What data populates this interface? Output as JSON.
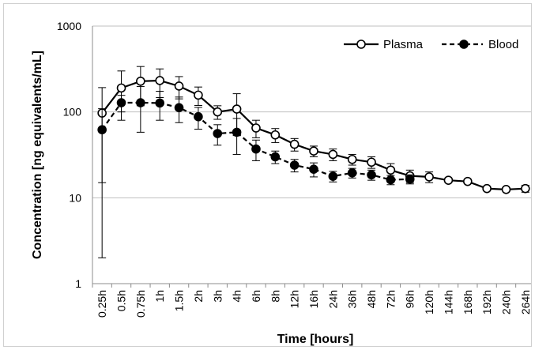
{
  "chart_data": {
    "type": "line",
    "title": "",
    "xlabel": "Time [hours]",
    "ylabel": "Concentration [ng equivalents/mL]",
    "yscale": "log",
    "ylim": [
      1,
      1000
    ],
    "yticks": [
      1,
      10,
      100,
      1000
    ],
    "ytick_labels": [
      "1",
      "10",
      "100",
      "1000"
    ],
    "grid": "horizontal",
    "legend_position": "top-right",
    "categories": [
      "0.25h",
      "0.5h",
      "0.75h",
      "1h",
      "1.5h",
      "2h",
      "3h",
      "4h",
      "6h",
      "8h",
      "12h",
      "16h",
      "24h",
      "36h",
      "48h",
      "72h",
      "96h",
      "120h",
      "144h",
      "168h",
      "192h",
      "240h",
      "264h"
    ],
    "series": [
      {
        "name": "Plasma",
        "marker": "open-circle",
        "line_style": "solid",
        "color": "#000000",
        "values": [
          97,
          190,
          228,
          232,
          200,
          157,
          100,
          108,
          65,
          54,
          42,
          35,
          32,
          28,
          26,
          21,
          18,
          17.5,
          16,
          15.5,
          12.8,
          12.5,
          12.8
        ],
        "error": [
          95,
          110,
          110,
          85,
          58,
          38,
          18,
          55,
          15,
          10,
          7,
          5,
          5,
          4,
          4,
          4,
          3,
          2.5,
          0,
          0,
          0,
          0,
          1.2
        ]
      },
      {
        "name": "Blood",
        "marker": "filled-circle",
        "line_style": "dashed",
        "color": "#000000",
        "values": [
          62,
          128,
          128,
          127,
          112,
          88,
          56,
          58,
          37,
          30,
          24,
          21.5,
          17.8,
          19.5,
          18.5,
          16.2,
          16.5,
          null,
          null,
          null,
          null,
          null,
          null
        ],
        "error": [
          47,
          28,
          70,
          47,
          37,
          25,
          15,
          26,
          10,
          5,
          4,
          4,
          2.5,
          2.5,
          2.5,
          2,
          2,
          null,
          null,
          null,
          null,
          null,
          null
        ]
      }
    ]
  }
}
